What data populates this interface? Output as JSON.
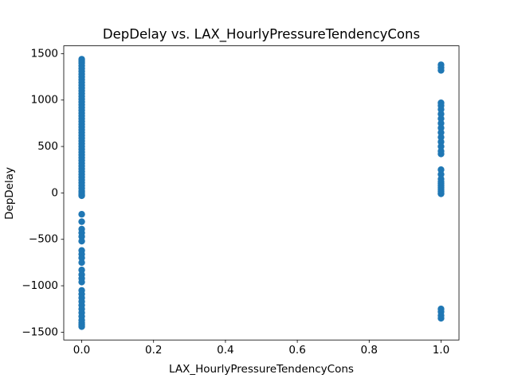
{
  "chart_data": {
    "type": "scatter",
    "title": "DepDelay vs. LAX_HourlyPressureTendencyCons",
    "x_label": "LAX_HourlyPressureTendencyCons",
    "y_label": "DepDelay",
    "color": "#1f77b4",
    "xlim": [
      -0.05,
      1.05
    ],
    "ylim": [
      -1584,
      1584
    ],
    "xticks": [
      {
        "value": 0,
        "label": "0.0"
      },
      {
        "value": 0.2,
        "label": "0.2"
      },
      {
        "value": 0.4,
        "label": "0.4"
      },
      {
        "value": 0.6,
        "label": "0.6"
      },
      {
        "value": 0.8,
        "label": "0.8"
      },
      {
        "value": 1,
        "label": "1.0"
      }
    ],
    "yticks": [
      {
        "value": -1500,
        "label": "−1500"
      },
      {
        "value": -1000,
        "label": "−1000"
      },
      {
        "value": -500,
        "label": "−500"
      },
      0,
      500,
      1000,
      1500
    ],
    "x": [
      0,
      0,
      0,
      0,
      0,
      0,
      0,
      0,
      0,
      0,
      0,
      0,
      0,
      0,
      0,
      0,
      0,
      0,
      0,
      0,
      0,
      0,
      0,
      0,
      0,
      0,
      0,
      0,
      0,
      0,
      0,
      0,
      0,
      0,
      0,
      0,
      0,
      0,
      0,
      0,
      0,
      0,
      0,
      0,
      0,
      0,
      0,
      0,
      0,
      0,
      0,
      0,
      0,
      0,
      0,
      0,
      0,
      0,
      0,
      0,
      0,
      0,
      0,
      0,
      0,
      0,
      0,
      0,
      0,
      0,
      0,
      0,
      0,
      0,
      0,
      0,
      0,
      0,
      1,
      1,
      1,
      1,
      1,
      1,
      1,
      1,
      1,
      1,
      1,
      1,
      1,
      1,
      1,
      1,
      1,
      1,
      1,
      1,
      1,
      1,
      1,
      1,
      1,
      1,
      1,
      1,
      1,
      1,
      1
    ],
    "y": [
      1440,
      1420,
      1400,
      1370,
      1340,
      1310,
      1280,
      1250,
      1220,
      1190,
      1160,
      1130,
      1100,
      1070,
      1040,
      1010,
      980,
      950,
      920,
      890,
      860,
      830,
      800,
      770,
      740,
      710,
      680,
      650,
      620,
      590,
      560,
      530,
      500,
      470,
      440,
      410,
      380,
      350,
      320,
      290,
      260,
      230,
      200,
      170,
      140,
      110,
      80,
      50,
      20,
      0,
      -20,
      -30,
      -230,
      -310,
      -390,
      -430,
      -470,
      -520,
      -620,
      -660,
      -700,
      -750,
      -830,
      -880,
      -920,
      -960,
      -1050,
      -1090,
      -1130,
      -1170,
      -1210,
      -1250,
      -1290,
      -1330,
      -1370,
      -1400,
      -1420,
      -1440,
      1380,
      1350,
      1320,
      970,
      940,
      900,
      850,
      800,
      750,
      700,
      650,
      600,
      550,
      500,
      450,
      420,
      250,
      200,
      150,
      120,
      100,
      80,
      60,
      40,
      20,
      0,
      -10,
      -1250,
      -1280,
      -1320,
      -1350
    ]
  }
}
